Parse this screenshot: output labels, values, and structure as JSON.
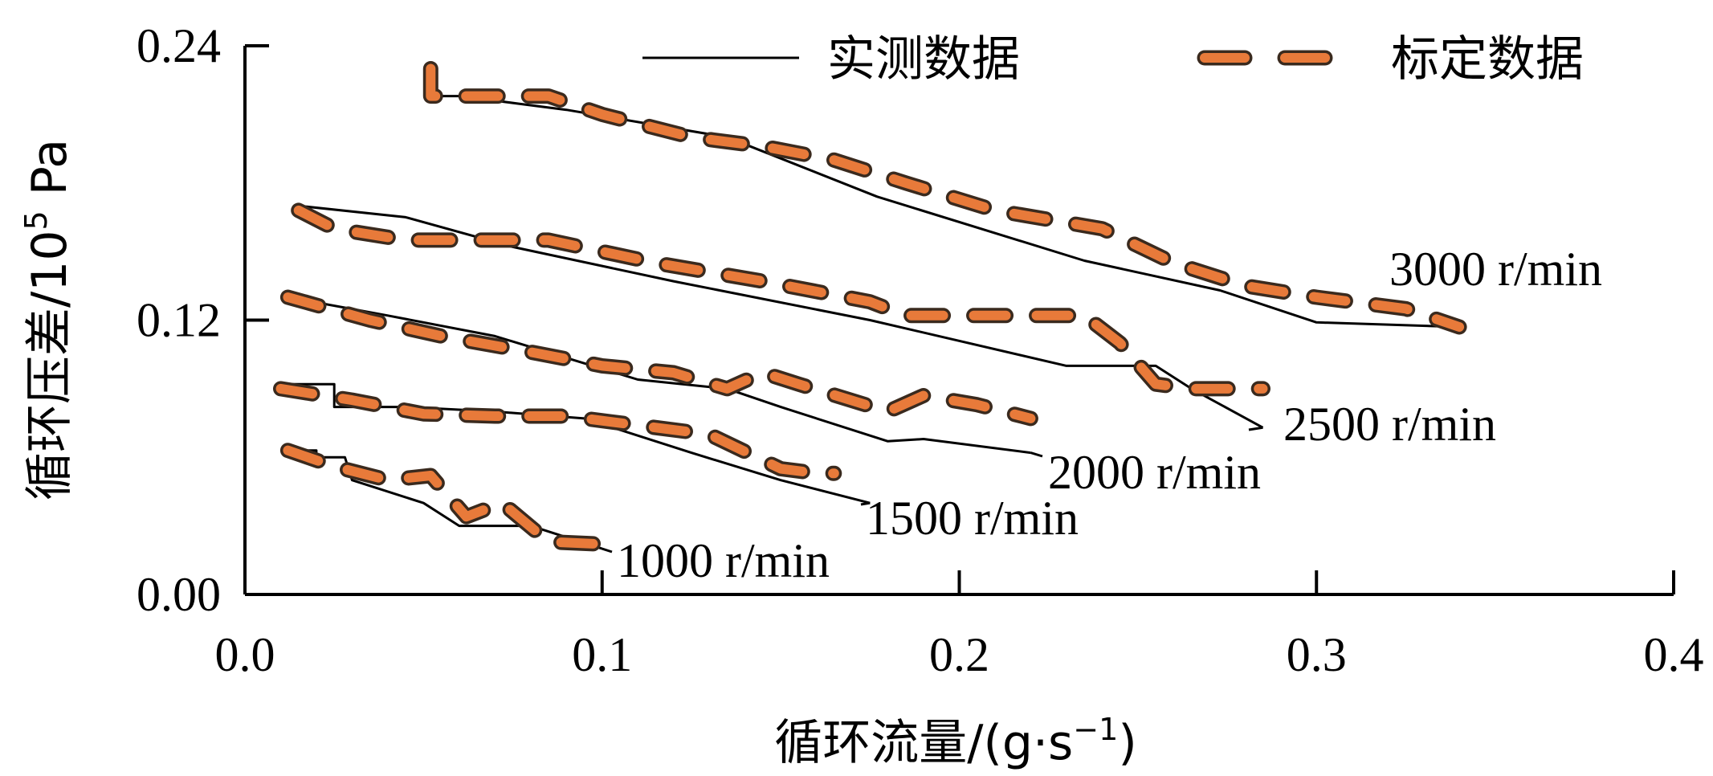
{
  "colors": {
    "calibrated": "#e87a3a",
    "measured": "#000000"
  },
  "chart_data": {
    "type": "line",
    "xlabel": "循环流量/(g·s",
    "xlabel_sup": "−1",
    "xlabel_end": ")",
    "ylabel_cn": "循环压差/10",
    "ylabel_sup": "5",
    "ylabel_unit": " Pa",
    "xlim": [
      0.0,
      0.4
    ],
    "ylim": [
      0.0,
      0.24
    ],
    "xticks": [
      "0.0",
      "0.1",
      "0.2",
      "0.3",
      "0.4"
    ],
    "yticks": [
      "0.00",
      "0.12",
      "0.24"
    ],
    "legend_position": "top",
    "legend": [
      "实测数据",
      "标定数据"
    ],
    "speed_labels": [
      "3000 r/min",
      "2500 r/min",
      "2000 r/min",
      "1500 r/min",
      "1000 r/min"
    ],
    "series": [
      {
        "name": "实测数据",
        "speed": "3000 r/min",
        "x": [
          0.052,
          0.06,
          0.09,
          0.135,
          0.177,
          0.235,
          0.273,
          0.3,
          0.34
        ],
        "y": [
          0.218,
          0.218,
          0.212,
          0.2,
          0.174,
          0.146,
          0.133,
          0.119,
          0.117
        ]
      },
      {
        "name": "标定数据",
        "speed": "3000 r/min",
        "x": [
          0.052,
          0.052,
          0.06,
          0.075,
          0.085,
          0.1,
          0.125,
          0.145,
          0.165,
          0.185,
          0.21,
          0.24,
          0.26,
          0.28,
          0.3,
          0.325,
          0.34
        ],
        "y": [
          0.23,
          0.218,
          0.218,
          0.218,
          0.218,
          0.21,
          0.2,
          0.196,
          0.19,
          0.18,
          0.168,
          0.16,
          0.145,
          0.135,
          0.13,
          0.125,
          0.117
        ]
      },
      {
        "name": "实测数据",
        "speed": "2500 r/min",
        "x": [
          0.015,
          0.045,
          0.075,
          0.12,
          0.175,
          0.23,
          0.255,
          0.265,
          0.285
        ],
        "y": [
          0.17,
          0.165,
          0.152,
          0.137,
          0.12,
          0.1,
          0.1,
          0.09,
          0.073
        ]
      },
      {
        "name": "标定数据",
        "speed": "2500 r/min",
        "x": [
          0.015,
          0.025,
          0.045,
          0.065,
          0.085,
          0.115,
          0.145,
          0.175,
          0.185,
          0.205,
          0.225,
          0.235,
          0.245,
          0.255,
          0.265,
          0.275,
          0.285
        ],
        "y": [
          0.168,
          0.16,
          0.155,
          0.155,
          0.155,
          0.145,
          0.137,
          0.128,
          0.122,
          0.122,
          0.122,
          0.122,
          0.11,
          0.092,
          0.09,
          0.09,
          0.09
        ]
      },
      {
        "name": "实测数据",
        "speed": "2000 r/min",
        "x": [
          0.012,
          0.04,
          0.07,
          0.11,
          0.135,
          0.15,
          0.18,
          0.19,
          0.22
        ],
        "y": [
          0.13,
          0.122,
          0.113,
          0.094,
          0.09,
          0.082,
          0.067,
          0.068,
          0.062
        ]
      },
      {
        "name": "标定数据",
        "speed": "2000 r/min",
        "x": [
          0.012,
          0.035,
          0.055,
          0.08,
          0.1,
          0.12,
          0.135,
          0.145,
          0.155,
          0.18,
          0.19,
          0.205,
          0.22
        ],
        "y": [
          0.13,
          0.12,
          0.113,
          0.106,
          0.1,
          0.097,
          0.09,
          0.097,
          0.092,
          0.08,
          0.087,
          0.083,
          0.077
        ]
      },
      {
        "name": "实测数据",
        "speed": "1500 r/min",
        "x": [
          0.01,
          0.025,
          0.025,
          0.045,
          0.07,
          0.095,
          0.125,
          0.15,
          0.175
        ],
        "y": [
          0.092,
          0.092,
          0.082,
          0.082,
          0.08,
          0.077,
          0.062,
          0.05,
          0.04
        ]
      },
      {
        "name": "标定数据",
        "speed": "1500 r/min",
        "x": [
          0.01,
          0.03,
          0.05,
          0.07,
          0.09,
          0.11,
          0.13,
          0.15,
          0.16,
          0.165
        ],
        "y": [
          0.09,
          0.085,
          0.079,
          0.078,
          0.078,
          0.074,
          0.07,
          0.055,
          0.053,
          0.053
        ]
      },
      {
        "name": "实测数据",
        "speed": "1000 r/min",
        "x": [
          0.01,
          0.02,
          0.02,
          0.028,
          0.03,
          0.05,
          0.06,
          0.08,
          0.1
        ],
        "y": [
          0.063,
          0.063,
          0.06,
          0.06,
          0.05,
          0.04,
          0.03,
          0.03,
          0.02
        ]
      },
      {
        "name": "标定数据",
        "speed": "1000 r/min",
        "x": [
          0.012,
          0.025,
          0.04,
          0.052,
          0.062,
          0.072,
          0.085,
          0.1
        ],
        "y": [
          0.063,
          0.056,
          0.05,
          0.052,
          0.034,
          0.04,
          0.023,
          0.022
        ]
      }
    ]
  }
}
